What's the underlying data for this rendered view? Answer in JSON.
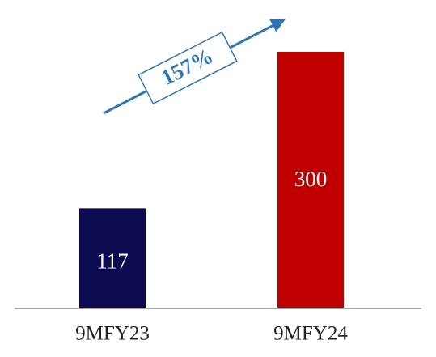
{
  "chart_data": {
    "type": "bar",
    "categories": [
      "9MFY23",
      "9MFY24"
    ],
    "values": [
      117,
      300
    ],
    "colors": [
      "#0d0a4f",
      "#c00000"
    ],
    "ylim": [
      0,
      300
    ],
    "annotation": "157%"
  }
}
